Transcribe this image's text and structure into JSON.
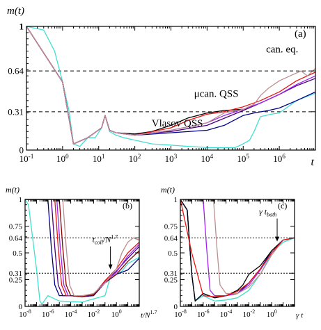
{
  "chart_data": [
    {
      "panel": "(a)",
      "type": "line",
      "ylabel": "m(t)",
      "xlabel": "t",
      "xscale": "log",
      "xlim": [
        0.1,
        10000000
      ],
      "ylim": [
        0,
        1
      ],
      "xticks": [
        {
          "v": 0.1,
          "b": "10",
          "e": "-1"
        },
        {
          "v": 1,
          "b": "10",
          "e": "0"
        },
        {
          "v": 10,
          "b": "10",
          "e": "1"
        },
        {
          "v": 100,
          "b": "10",
          "e": "2"
        },
        {
          "v": 1000,
          "b": "10",
          "e": "3"
        },
        {
          "v": 10000,
          "b": "10",
          "e": "4"
        },
        {
          "v": 100000,
          "b": "10",
          "e": "5"
        },
        {
          "v": 1000000,
          "b": "10",
          "e": "6"
        }
      ],
      "yticks": [
        {
          "v": 0,
          "t": "0"
        },
        {
          "v": 0.31,
          "t": "0.31"
        },
        {
          "v": 0.64,
          "t": "0.64"
        },
        {
          "v": 1,
          "t": "1"
        }
      ],
      "hlines": [
        0.64,
        0.31
      ],
      "annotations": [
        {
          "text": "can. eq.",
          "x": 1200000,
          "y": 0.79
        },
        {
          "text": "μcan. QSS",
          "x": 18000,
          "y": 0.43
        },
        {
          "text": "Vlasov QSS",
          "x": 1500,
          "y": 0.19
        }
      ],
      "series": [
        {
          "color": "#40e0d0",
          "x": [
            0.1,
            0.3,
            0.6,
            1,
            1.5,
            2,
            3,
            5,
            8,
            12,
            15,
            20,
            30,
            50,
            100,
            300,
            1000,
            3000,
            10000,
            30000,
            60000,
            100000,
            150000,
            200000,
            300000,
            600000,
            1000000,
            3000000,
            10000000
          ],
          "y": [
            1,
            0.97,
            0.8,
            0.55,
            0.32,
            0.05,
            0.03,
            0.1,
            0.1,
            0.18,
            0.28,
            0.15,
            0.12,
            0.1,
            0.08,
            0.05,
            0.04,
            0.03,
            0.02,
            0.02,
            0.02,
            0.05,
            0.08,
            0.15,
            0.27,
            0.29,
            0.3,
            0.4,
            0.46
          ]
        },
        {
          "color": "#00008b",
          "x": [
            0.1,
            1,
            2,
            5,
            12,
            15,
            20,
            30,
            100,
            1000,
            10000,
            30000,
            100000,
            200000,
            500000,
            1000000,
            3000000,
            10000000
          ],
          "y": [
            1,
            0.55,
            0.05,
            0.1,
            0.18,
            0.28,
            0.16,
            0.14,
            0.12,
            0.14,
            0.16,
            0.2,
            0.28,
            0.3,
            0.32,
            0.34,
            0.4,
            0.47
          ]
        },
        {
          "color": "#4b0082",
          "x": [
            0.1,
            1,
            2,
            5,
            12,
            15,
            20,
            30,
            100,
            1000,
            10000,
            100000,
            300000,
            1000000,
            3000000,
            10000000
          ],
          "y": [
            1,
            0.55,
            0.05,
            0.1,
            0.18,
            0.28,
            0.16,
            0.14,
            0.13,
            0.15,
            0.2,
            0.32,
            0.38,
            0.45,
            0.52,
            0.58
          ]
        },
        {
          "color": "#000000",
          "x": [
            0.1,
            1,
            2,
            5,
            12,
            15,
            20,
            30,
            100,
            300,
            1000,
            3000,
            10000,
            30000,
            100000
          ],
          "y": [
            1,
            0.55,
            0.05,
            0.1,
            0.18,
            0.28,
            0.16,
            0.14,
            0.13,
            0.15,
            0.2,
            0.26,
            0.3,
            0.32,
            0.33
          ]
        },
        {
          "color": "#ee1111",
          "x": [
            0.1,
            1,
            2,
            5,
            12,
            15,
            20,
            30,
            100,
            1000,
            3000,
            10000,
            30000,
            100000,
            300000,
            1000000,
            3000000,
            10000000
          ],
          "y": [
            1,
            0.55,
            0.05,
            0.1,
            0.18,
            0.28,
            0.16,
            0.14,
            0.12,
            0.18,
            0.24,
            0.29,
            0.31,
            0.35,
            0.4,
            0.47,
            0.56,
            0.63
          ]
        },
        {
          "color": "#a020f0",
          "x": [
            0.1,
            1,
            2,
            5,
            12,
            15,
            20,
            30,
            100,
            1000,
            10000,
            30000,
            100000,
            300000,
            1000000,
            3000000,
            10000000
          ],
          "y": [
            1,
            0.55,
            0.05,
            0.1,
            0.18,
            0.28,
            0.16,
            0.14,
            0.12,
            0.16,
            0.22,
            0.28,
            0.33,
            0.38,
            0.45,
            0.53,
            0.6
          ]
        },
        {
          "color": "#bc8f8f",
          "x": [
            0.1,
            1,
            2,
            5,
            12,
            15,
            20,
            30,
            100,
            1000,
            10000,
            30000,
            100000,
            200000,
            300000,
            500000,
            1000000,
            2000000,
            4000000,
            6000000,
            10000000
          ],
          "y": [
            1,
            0.55,
            0.05,
            0.1,
            0.18,
            0.28,
            0.16,
            0.14,
            0.12,
            0.16,
            0.22,
            0.3,
            0.33,
            0.37,
            0.44,
            0.5,
            0.56,
            0.6,
            0.64,
            0.6,
            0.66
          ]
        }
      ]
    },
    {
      "panel": "(b)",
      "type": "line",
      "ylabel": "m(t)",
      "xlabel": "t/N^1.7",
      "xscale": "log",
      "xlim": [
        1e-08,
        100
      ],
      "ylim": [
        0,
        1
      ],
      "xticks": [
        {
          "v": 1e-08,
          "b": "10",
          "e": "-8"
        },
        {
          "v": 1e-06,
          "b": "10",
          "e": "-6"
        },
        {
          "v": 0.0001,
          "b": "10",
          "e": "-4"
        },
        {
          "v": 0.01,
          "b": "10",
          "e": "-2"
        },
        {
          "v": 1,
          "b": "10",
          "e": "0"
        }
      ],
      "yticks": [
        {
          "v": 0,
          "t": "0"
        },
        {
          "v": 0.25,
          "t": "0.25"
        },
        {
          "v": 0.31,
          "t": "0.31"
        },
        {
          "v": 0.5,
          "t": "0.5"
        },
        {
          "v": 0.64,
          "t": "0.64"
        },
        {
          "v": 0.75,
          "t": "0.75"
        },
        {
          "v": 1,
          "t": "1"
        }
      ],
      "hlines": [
        0.64,
        0.31
      ],
      "annotation": {
        "main": "t",
        "sub": "coll",
        "rest": "/N",
        "sup": "1.7",
        "arrow_x": 0.3,
        "arrow_y": 0.34
      },
      "series": [
        {
          "color": "#40e0d0",
          "x": [
            1e-08,
            2e-08,
            1e-07,
            2e-07,
            3e-07,
            1e-06,
            1e-05,
            0.001,
            0.1,
            0.3,
            1,
            3,
            10,
            100
          ],
          "y": [
            1,
            0.95,
            0.35,
            0.05,
            0.02,
            0.1,
            0.05,
            0.04,
            0.1,
            0.28,
            0.3,
            0.33,
            0.4,
            0.46
          ]
        },
        {
          "color": "#00008b",
          "x": [
            1e-08,
            1e-06,
            2e-06,
            4e-06,
            1e-05,
            0.0001,
            0.001,
            0.01,
            0.1,
            1,
            10,
            100
          ],
          "y": [
            1,
            1,
            0.55,
            0.2,
            0.1,
            0.1,
            0.09,
            0.1,
            0.22,
            0.3,
            0.34,
            0.45
          ]
        },
        {
          "color": "#4b0082",
          "x": [
            1e-08,
            2e-06,
            4e-06,
            8e-06,
            2e-05,
            0.0001,
            0.001,
            0.01,
            0.1,
            1,
            10,
            100
          ],
          "y": [
            1,
            1,
            0.55,
            0.2,
            0.1,
            0.1,
            0.09,
            0.11,
            0.23,
            0.33,
            0.45,
            0.56
          ]
        },
        {
          "color": "#ee1111",
          "x": [
            1e-08,
            4e-06,
            8e-06,
            1.6e-05,
            4e-05,
            0.0001,
            0.001,
            0.01,
            0.1,
            1,
            10,
            100
          ],
          "y": [
            1,
            1,
            0.55,
            0.2,
            0.1,
            0.1,
            0.09,
            0.11,
            0.24,
            0.35,
            0.5,
            0.6
          ]
        },
        {
          "color": "#a020f0",
          "x": [
            1e-08,
            6e-06,
            1.2e-05,
            2.5e-05,
            6e-05,
            0.0001,
            0.001,
            0.01,
            0.1,
            1,
            10,
            100
          ],
          "y": [
            1,
            1,
            0.55,
            0.2,
            0.1,
            0.1,
            0.09,
            0.11,
            0.23,
            0.32,
            0.47,
            0.58
          ]
        },
        {
          "color": "#8b0000",
          "x": [
            1e-08,
            1e-05,
            2e-05,
            4e-05,
            0.0001,
            0.001,
            0.01,
            0.1,
            1,
            10,
            100
          ],
          "y": [
            1,
            1,
            0.55,
            0.2,
            0.1,
            0.09,
            0.11,
            0.22,
            0.3,
            0.42,
            0.52
          ]
        },
        {
          "color": "#bc8f8f",
          "x": [
            1e-08,
            2e-05,
            4e-05,
            8e-05,
            0.0002,
            0.001,
            0.01,
            0.1,
            1,
            3,
            10,
            30,
            100
          ],
          "y": [
            1,
            1,
            0.55,
            0.2,
            0.1,
            0.1,
            0.12,
            0.22,
            0.35,
            0.5,
            0.6,
            0.64,
            0.62
          ]
        }
      ]
    },
    {
      "panel": "(c)",
      "type": "line",
      "ylabel": "m(t)",
      "xlabel": "γ t",
      "xscale": "log",
      "xlim": [
        1e-08,
        100
      ],
      "ylim": [
        0,
        1
      ],
      "xticks": [
        {
          "v": 1e-08,
          "b": "10",
          "e": "-8"
        },
        {
          "v": 1e-06,
          "b": "10",
          "e": "-6"
        },
        {
          "v": 0.0001,
          "b": "10",
          "e": "-4"
        },
        {
          "v": 0.01,
          "b": "10",
          "e": "-2"
        },
        {
          "v": 1,
          "b": "10",
          "e": "0"
        }
      ],
      "yticks": [
        {
          "v": 0,
          "t": "0"
        },
        {
          "v": 0.25,
          "t": "0.25"
        },
        {
          "v": 0.31,
          "t": "0.31"
        },
        {
          "v": 0.5,
          "t": "0.5"
        },
        {
          "v": 0.64,
          "t": "0.64"
        },
        {
          "v": 0.75,
          "t": "0.75"
        },
        {
          "v": 1,
          "t": "1"
        }
      ],
      "hlines": [
        0.64,
        0.31
      ],
      "annotation": {
        "main": "γ t",
        "sub": "bath",
        "rest": "",
        "sup": "",
        "arrow_x": 3,
        "arrow_y": 0.6
      },
      "series": [
        {
          "color": "#40e0d0",
          "x": [
            1e-08,
            4e-08,
            1e-07,
            2e-07,
            1e-06,
            1e-05,
            0.0001,
            0.001,
            0.01,
            0.1,
            1,
            10,
            100
          ],
          "y": [
            1,
            0.9,
            0.3,
            0.05,
            0.1,
            0.05,
            0.06,
            0.08,
            0.15,
            0.3,
            0.5,
            0.6,
            0.64
          ]
        },
        {
          "color": "#00008b",
          "x": [
            1e-08,
            4e-08,
            1e-07,
            2e-07,
            1e-06,
            1e-05,
            0.0001,
            0.001,
            0.01,
            0.1,
            1,
            10,
            100
          ],
          "y": [
            1,
            0.9,
            0.3,
            0.05,
            0.12,
            0.08,
            0.1,
            0.12,
            0.22,
            0.35,
            0.52,
            0.62,
            0.64
          ]
        },
        {
          "color": "#000000",
          "x": [
            1e-08,
            4e-08,
            1e-07,
            2e-07,
            1e-06,
            1e-05,
            0.0001,
            0.001,
            0.003,
            0.01,
            0.1,
            1,
            10,
            100
          ],
          "y": [
            1,
            0.9,
            0.3,
            0.05,
            0.12,
            0.08,
            0.1,
            0.15,
            0.2,
            0.3,
            0.38,
            0.52,
            0.62,
            0.64
          ]
        },
        {
          "color": "#a020f0",
          "x": [
            1e-08,
            1e-06,
            2e-06,
            4e-06,
            1e-05,
            0.0001,
            0.001,
            0.01,
            0.1,
            1,
            10,
            100
          ],
          "y": [
            1,
            1,
            0.55,
            0.15,
            0.1,
            0.1,
            0.12,
            0.2,
            0.34,
            0.5,
            0.62,
            0.64
          ]
        },
        {
          "color": "#bc8f8f",
          "x": [
            1e-08,
            8e-06,
            1.6e-05,
            3e-05,
            0.0001,
            0.001,
            0.01,
            0.1,
            1,
            10,
            100
          ],
          "y": [
            1,
            1,
            0.55,
            0.2,
            0.12,
            0.12,
            0.18,
            0.3,
            0.48,
            0.62,
            0.64
          ]
        },
        {
          "color": "#ee1111",
          "x": [
            1e-08,
            1e-07,
            1e-06,
            1e-05,
            0.0001,
            0.001,
            0.01,
            0.1,
            1,
            10,
            100
          ],
          "y": [
            1,
            0.5,
            0.1,
            0.09,
            0.1,
            0.14,
            0.22,
            0.35,
            0.5,
            0.62,
            0.64
          ]
        }
      ]
    }
  ]
}
